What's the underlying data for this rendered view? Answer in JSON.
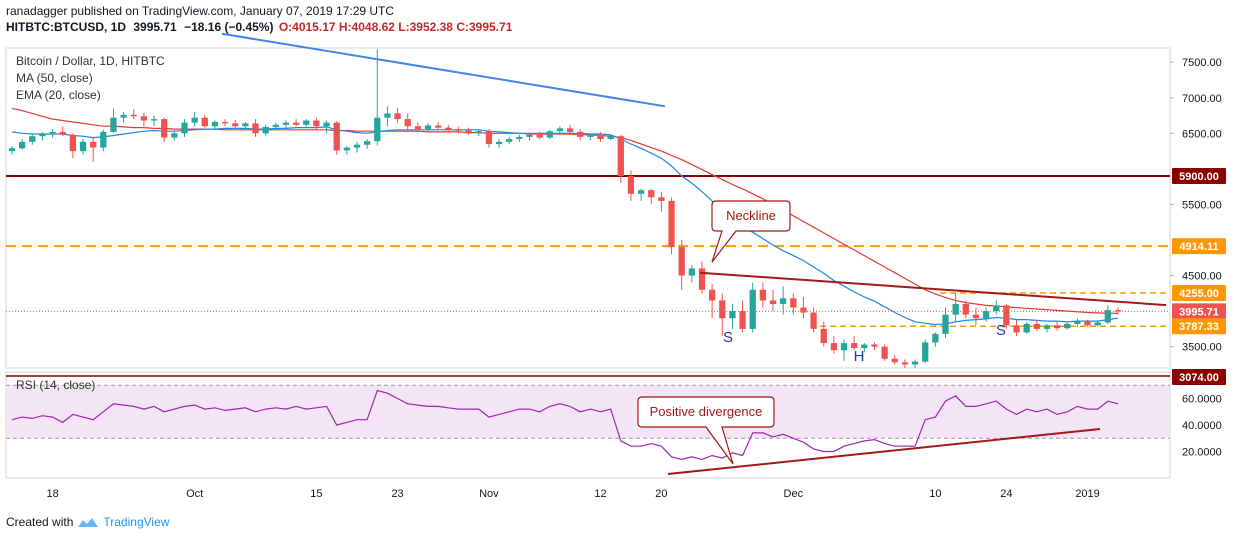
{
  "header": {
    "publisher_line": "ranadagger published on TradingView.com, January 07, 2019 17:29 UTC",
    "symbol_line_prefix": "HITBTC:BTCUSD, 1D",
    "symbol_line_price": "3995.71",
    "symbol_line_change": "−18.16 (−0.45%)",
    "ohlc_o": "O:4015.17",
    "ohlc_h": "H:4048.62",
    "ohlc_l": "L:3952.38",
    "ohlc_c": "C:3995.71"
  },
  "legend": {
    "title": "Bitcoin / Dollar, 1D, HITBTC",
    "ma": "MA (50, close)",
    "ema": "EMA (20, close)",
    "rsi": "RSI (14, close)"
  },
  "footer": {
    "created_with": "Created with",
    "brand": "TradingView"
  },
  "colors": {
    "up": "#26a69a",
    "down": "#ef5350",
    "ma50": "#e53935",
    "ema20": "#1e88e5",
    "annotation": "#a31818",
    "level_orange": "#ff9800",
    "rsi_line": "#9c27b0",
    "rsi_fill": "#f3e5f5",
    "blue_trend": "#3f86e8"
  },
  "chart_data": [
    {
      "type": "candlestick",
      "title": "Bitcoin / Dollar, 1D, HITBTC",
      "ylim": [
        3200,
        7700
      ],
      "y_ticks": [
        "7500.00",
        "7000.00",
        "6500.00",
        "5500.00",
        "4500.00",
        "3500.00"
      ],
      "x_ticks": [
        "18",
        "Oct",
        "15",
        "23",
        "Nov",
        "12",
        "20",
        "Dec",
        "10",
        "24",
        "2019"
      ],
      "price_labels": [
        {
          "text": "5900.00",
          "value": 5900
        },
        {
          "text": "4914.11",
          "value": 4914.11
        },
        {
          "text": "4255.00",
          "value": 4255
        },
        {
          "text": "3995.71",
          "value": 3995.71
        },
        {
          "text": "3787.33",
          "value": 3787.33
        },
        {
          "text": "3074.00",
          "value": 3074
        }
      ],
      "annotations": {
        "neckline": "Neckline",
        "shoulder_left": "S",
        "head": "H",
        "shoulder_right": "S"
      },
      "candles": [
        [
          6250,
          6320,
          6200,
          6290
        ],
        [
          6290,
          6420,
          6270,
          6380
        ],
        [
          6380,
          6500,
          6340,
          6460
        ],
        [
          6460,
          6520,
          6400,
          6500
        ],
        [
          6500,
          6560,
          6440,
          6520
        ],
        [
          6520,
          6600,
          6460,
          6480
        ],
        [
          6480,
          6500,
          6150,
          6250
        ],
        [
          6250,
          6420,
          6200,
          6380
        ],
        [
          6380,
          6450,
          6100,
          6300
        ],
        [
          6300,
          6550,
          6250,
          6520
        ],
        [
          6520,
          6850,
          6500,
          6720
        ],
        [
          6720,
          6800,
          6650,
          6760
        ],
        [
          6760,
          6840,
          6700,
          6740
        ],
        [
          6740,
          6790,
          6600,
          6680
        ],
        [
          6680,
          6750,
          6600,
          6700
        ],
        [
          6700,
          6720,
          6380,
          6440
        ],
        [
          6440,
          6520,
          6400,
          6500
        ],
        [
          6500,
          6700,
          6450,
          6650
        ],
        [
          6650,
          6800,
          6600,
          6720
        ],
        [
          6720,
          6760,
          6580,
          6600
        ],
        [
          6600,
          6680,
          6550,
          6660
        ],
        [
          6660,
          6700,
          6600,
          6640
        ],
        [
          6640,
          6690,
          6560,
          6600
        ],
        [
          6600,
          6660,
          6540,
          6640
        ],
        [
          6640,
          6700,
          6450,
          6500
        ],
        [
          6500,
          6620,
          6470,
          6590
        ],
        [
          6590,
          6650,
          6540,
          6620
        ],
        [
          6620,
          6680,
          6570,
          6650
        ],
        [
          6650,
          6700,
          6600,
          6620
        ],
        [
          6620,
          6700,
          6580,
          6680
        ],
        [
          6680,
          6720,
          6560,
          6600
        ],
        [
          6600,
          6680,
          6500,
          6650
        ],
        [
          6650,
          6670,
          6200,
          6260
        ],
        [
          6260,
          6320,
          6200,
          6300
        ],
        [
          6300,
          6380,
          6230,
          6340
        ],
        [
          6340,
          6420,
          6280,
          6390
        ],
        [
          6390,
          7680,
          6330,
          6720
        ],
        [
          6720,
          6880,
          6600,
          6780
        ],
        [
          6780,
          6860,
          6650,
          6700
        ],
        [
          6700,
          6780,
          6550,
          6600
        ],
        [
          6600,
          6650,
          6520,
          6560
        ],
        [
          6560,
          6640,
          6530,
          6610
        ],
        [
          6610,
          6660,
          6560,
          6580
        ],
        [
          6580,
          6620,
          6530,
          6550
        ],
        [
          6550,
          6590,
          6500,
          6540
        ],
        [
          6540,
          6580,
          6480,
          6500
        ],
        [
          6500,
          6560,
          6460,
          6530
        ],
        [
          6530,
          6560,
          6300,
          6350
        ],
        [
          6350,
          6420,
          6300,
          6380
        ],
        [
          6380,
          6450,
          6350,
          6420
        ],
        [
          6420,
          6480,
          6380,
          6450
        ],
        [
          6450,
          6500,
          6400,
          6480
        ],
        [
          6480,
          6520,
          6420,
          6440
        ],
        [
          6440,
          6550,
          6420,
          6530
        ],
        [
          6530,
          6600,
          6480,
          6570
        ],
        [
          6570,
          6620,
          6500,
          6520
        ],
        [
          6520,
          6560,
          6400,
          6450
        ],
        [
          6450,
          6500,
          6400,
          6480
        ],
        [
          6480,
          6520,
          6380,
          6420
        ],
        [
          6420,
          6480,
          6400,
          6460
        ],
        [
          6460,
          6480,
          5800,
          5900
        ],
        [
          5900,
          5980,
          5550,
          5650
        ],
        [
          5650,
          5720,
          5550,
          5700
        ],
        [
          5700,
          5720,
          5500,
          5600
        ],
        [
          5600,
          5680,
          5400,
          5550
        ],
        [
          5550,
          5600,
          4800,
          4900
        ],
        [
          4900,
          5000,
          4300,
          4500
        ],
        [
          4500,
          4650,
          4400,
          4600
        ],
        [
          4600,
          4700,
          4250,
          4300
        ],
        [
          4300,
          4380,
          3900,
          4150
        ],
        [
          4150,
          4250,
          3650,
          3900
        ],
        [
          3900,
          4100,
          3750,
          4000
        ],
        [
          4000,
          4150,
          3700,
          3750
        ],
        [
          3750,
          4400,
          3700,
          4300
        ],
        [
          4300,
          4400,
          4050,
          4150
        ],
        [
          4150,
          4300,
          4000,
          4100
        ],
        [
          4100,
          4350,
          3950,
          4180
        ],
        [
          4180,
          4250,
          3950,
          4050
        ],
        [
          4050,
          4200,
          3900,
          3980
        ],
        [
          3980,
          4050,
          3700,
          3750
        ],
        [
          3750,
          3850,
          3500,
          3550
        ],
        [
          3550,
          3650,
          3400,
          3450
        ],
        [
          3450,
          3600,
          3300,
          3550
        ],
        [
          3550,
          3650,
          3450,
          3480
        ],
        [
          3480,
          3550,
          3420,
          3530
        ],
        [
          3530,
          3560,
          3450,
          3500
        ],
        [
          3500,
          3530,
          3300,
          3330
        ],
        [
          3330,
          3380,
          3250,
          3280
        ],
        [
          3280,
          3320,
          3200,
          3250
        ],
        [
          3250,
          3320,
          3200,
          3290
        ],
        [
          3290,
          3600,
          3270,
          3560
        ],
        [
          3560,
          3700,
          3500,
          3680
        ],
        [
          3680,
          4050,
          3620,
          3950
        ],
        [
          3950,
          4250,
          3850,
          4100
        ],
        [
          4100,
          4150,
          3900,
          3950
        ],
        [
          3950,
          4050,
          3800,
          3900
        ],
        [
          3900,
          4050,
          3850,
          4000
        ],
        [
          4000,
          4150,
          3950,
          4080
        ],
        [
          4080,
          4100,
          3750,
          3800
        ],
        [
          3800,
          3880,
          3650,
          3700
        ],
        [
          3700,
          3850,
          3680,
          3820
        ],
        [
          3820,
          3880,
          3720,
          3750
        ],
        [
          3750,
          3820,
          3700,
          3800
        ],
        [
          3800,
          3850,
          3720,
          3760
        ],
        [
          3760,
          3850,
          3740,
          3820
        ],
        [
          3820,
          3900,
          3780,
          3860
        ],
        [
          3860,
          3880,
          3780,
          3800
        ],
        [
          3800,
          3860,
          3780,
          3840
        ],
        [
          3840,
          4080,
          3820,
          4014
        ],
        [
          4015,
          4049,
          3952,
          3996
        ]
      ],
      "series": [
        {
          "name": "MA (50, close)",
          "values": [
            6850,
            6820,
            6780,
            6740,
            6700,
            6680,
            6660,
            6640,
            6620,
            6600,
            6600,
            6590,
            6580,
            6580,
            6570,
            6570,
            6560,
            6560,
            6560,
            6560,
            6560,
            6550,
            6550,
            6550,
            6550,
            6550,
            6550,
            6550,
            6550,
            6550,
            6550,
            6550,
            6540,
            6540,
            6530,
            6530,
            6530,
            6530,
            6530,
            6530,
            6530,
            6520,
            6520,
            6520,
            6520,
            6510,
            6510,
            6500,
            6500,
            6500,
            6500,
            6490,
            6490,
            6490,
            6490,
            6490,
            6480,
            6480,
            6470,
            6460,
            6440,
            6400,
            6350,
            6300,
            6250,
            6190,
            6130,
            6060,
            5990,
            5920,
            5850,
            5780,
            5720,
            5650,
            5580,
            5500,
            5420,
            5340,
            5260,
            5180,
            5100,
            5020,
            4940,
            4860,
            4780,
            4700,
            4620,
            4540,
            4460,
            4380,
            4300,
            4240,
            4190,
            4150,
            4120,
            4100,
            4080,
            4070,
            4060,
            4050,
            4040,
            4030,
            4020,
            4010,
            4000,
            3990,
            3980,
            3975,
            3970,
            3968
          ]
        },
        {
          "name": "EMA (20, close)",
          "values": [
            6520,
            6500,
            6490,
            6490,
            6490,
            6490,
            6470,
            6460,
            6440,
            6450,
            6470,
            6490,
            6510,
            6530,
            6540,
            6530,
            6530,
            6540,
            6550,
            6560,
            6560,
            6570,
            6570,
            6570,
            6560,
            6560,
            6570,
            6570,
            6580,
            6580,
            6580,
            6590,
            6550,
            6530,
            6510,
            6500,
            6520,
            6540,
            6550,
            6550,
            6550,
            6550,
            6550,
            6550,
            6550,
            6550,
            6550,
            6530,
            6520,
            6510,
            6500,
            6500,
            6500,
            6500,
            6500,
            6500,
            6500,
            6490,
            6490,
            6480,
            6420,
            6350,
            6290,
            6220,
            6150,
            6040,
            5900,
            5800,
            5680,
            5550,
            5410,
            5300,
            5180,
            5110,
            5020,
            4930,
            4850,
            4780,
            4710,
            4620,
            4530,
            4430,
            4350,
            4270,
            4200,
            4140,
            4060,
            3980,
            3910,
            3850,
            3830,
            3810,
            3820,
            3850,
            3870,
            3880,
            3890,
            3910,
            3900,
            3880,
            3880,
            3870,
            3860,
            3860,
            3850,
            3860,
            3860,
            3860,
            3880,
            3900
          ]
        }
      ]
    },
    {
      "type": "line",
      "title": "RSI (14, close)",
      "ylim": [
        0,
        80
      ],
      "y_ticks": [
        "60.0000",
        "40.0000",
        "20.0000"
      ],
      "bands": [
        30,
        70
      ],
      "annotation": "Positive divergence",
      "series": [
        {
          "name": "RSI (14, close)",
          "values": [
            44,
            46,
            45,
            47,
            46,
            42,
            48,
            46,
            44,
            50,
            56,
            55,
            54,
            52,
            54,
            50,
            52,
            54,
            55,
            52,
            53,
            51,
            52,
            53,
            50,
            52,
            53,
            52,
            54,
            52,
            53,
            54,
            40,
            42,
            44,
            44,
            66,
            64,
            60,
            56,
            55,
            54,
            54,
            53,
            52,
            52,
            52,
            46,
            48,
            50,
            52,
            52,
            50,
            54,
            56,
            54,
            50,
            52,
            50,
            52,
            28,
            24,
            24,
            26,
            24,
            16,
            14,
            16,
            14,
            17,
            15,
            19,
            17,
            34,
            34,
            31,
            33,
            30,
            27,
            22,
            20,
            20,
            24,
            26,
            28,
            29,
            26,
            24,
            24,
            24,
            44,
            46,
            58,
            62,
            54,
            54,
            56,
            58,
            52,
            48,
            52,
            50,
            52,
            48,
            50,
            54,
            52,
            52,
            58,
            56
          ]
        }
      ]
    }
  ]
}
